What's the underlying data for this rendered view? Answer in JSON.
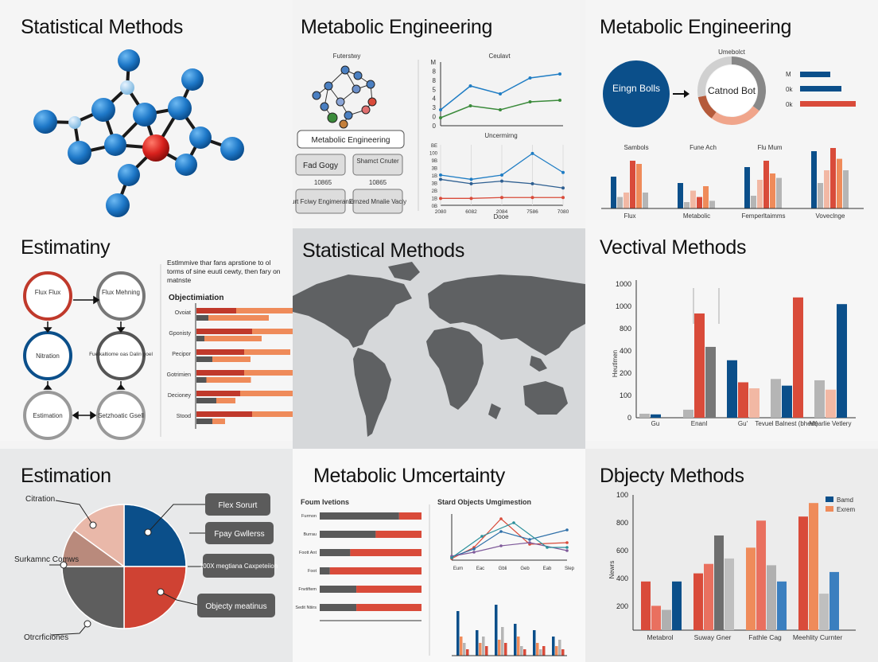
{
  "colors": {
    "navy": "#0b4f8a",
    "red": "#d94b3a",
    "orange": "#ef8b5a",
    "salmon": "#f2b8a4",
    "gray": "#5a5a5a",
    "lightgray": "#b5b5b5",
    "green": "#3a8a3a",
    "blue": "#1f7dc4"
  },
  "panels": {
    "p1": {
      "title": "Statistical Methods"
    },
    "p2": {
      "title": "Metabolic Engineering",
      "network_label": "Futerstwy",
      "box_main": "Metabolic Engineering",
      "boxes": [
        "Fad Gogy",
        "Shamct Cnuter",
        "Murt Fciwy Engimeranxs",
        "Ernzed Mnalie Vaciy"
      ],
      "box_vals": [
        "10865",
        "10865"
      ],
      "chart1_title": "Ceulavt",
      "chart1_yticks": [
        "M",
        "8",
        "8",
        "5",
        "4",
        "3",
        "0",
        "0"
      ],
      "chart2_title": "Uncermirng",
      "chart2_yticks": [
        "BE",
        "100",
        "9B",
        "3B",
        "1B",
        "3B",
        "2B",
        "1B",
        "0B"
      ],
      "chart2_xticks": [
        "2080",
        "6082",
        "2084",
        "7586",
        "7080"
      ],
      "chart2_xlabel": "Dooe"
    },
    "p3": {
      "title": "Metabolic Engineering",
      "circle1": "Eingn Bolls",
      "circle2_top": "Umebolct",
      "circle2": "Catnod Bot",
      "legend": [
        "M",
        "0k",
        "0k"
      ],
      "groups_top": [
        "Sambols",
        "Fune Ach",
        "Flu Mum"
      ],
      "groups_bottom": [
        "Flux",
        "Metabolic",
        "Femperltaimms",
        "Voveclnge"
      ]
    },
    "p4": {
      "title": "Estimatiny",
      "nodes": [
        "Flux Flux",
        "Flux Mehning",
        "Nitration",
        "Fuelkaltiome oas Dalin goel",
        "Estimation",
        "Setzhoatic Gsell"
      ],
      "desc": "Estlmmive thar fans aprstione to ol torms of sine euuti cewty, then fary on matnste",
      "sub_title": "Objectimiation",
      "row_labels": [
        "Ovoiat",
        "Gponisty",
        "Pecipor",
        "Gotrimien",
        "Decioney",
        "Stood"
      ]
    },
    "p5": {
      "title": "Statistical Methods"
    },
    "p6": {
      "title": "Vectival Methods",
      "ylabel": "Heutlmen",
      "yticks": [
        "1000",
        "1000",
        "800",
        "400",
        "200",
        "100",
        "0"
      ],
      "xticks": [
        "Gu",
        "Enanl",
        "Gu'",
        "Tevuel Balnest (bhest)",
        "Mearlie Vetlery"
      ]
    },
    "p7": {
      "title": "Estimation",
      "labels": [
        "Citration",
        "Surkamnc Comws",
        "Otrcrficiones"
      ],
      "boxes": [
        "Flex Sorurt",
        "Fpay Gwllerss",
        "100X megtiana Caxpeteiion",
        "Objecty meatinus"
      ]
    },
    "p8": {
      "title": "Metabolic Umcertainty",
      "bar_title": "Foum Ivetions",
      "bar_labels": [
        "Furmon",
        "Burrau",
        "Foott Ant",
        "Foot",
        "Fnvtiftem",
        "Sedit Ntiirs"
      ],
      "line_title": "Stard Objects Umgimestion",
      "line_xticks": [
        "Eum",
        "Eac",
        "Gbli",
        "Geb",
        "Eab",
        "Slep"
      ]
    },
    "p9": {
      "title": "Dbjecty Methods",
      "legend": [
        "Bamd",
        "Exrem"
      ],
      "ylabel": "Newrs",
      "yticks": [
        "100",
        "800",
        "600",
        "400",
        "200"
      ],
      "xticks": [
        "Metabrol",
        "Suway Gner",
        "Fathle Cag",
        "Meehlity Curnter"
      ]
    }
  },
  "chart_data": [
    {
      "type": "line",
      "title": "Ceulavt",
      "series": [
        {
          "values": [
            2,
            5,
            4,
            6,
            6.5
          ]
        },
        {
          "values": [
            1,
            2.5,
            2,
            3,
            3.2
          ]
        }
      ]
    },
    {
      "type": "line",
      "title": "Uncermirng",
      "x": [
        "2080",
        "6082",
        "2084",
        "7586",
        "7080"
      ],
      "series": [
        {
          "values": [
            35,
            30,
            35,
            60,
            38
          ]
        },
        {
          "values": [
            30,
            25,
            28,
            25,
            20
          ]
        },
        {
          "values": [
            8,
            8,
            9,
            9,
            9
          ]
        }
      ]
    },
    {
      "type": "bar",
      "categories": [
        "Flux",
        "Metabolic",
        "Femperltaimms",
        "Voveclnge"
      ],
      "series": [
        {
          "values": [
            50,
            40,
            65,
            90
          ]
        },
        {
          "values": [
            18,
            10,
            20,
            40
          ]
        },
        {
          "values": [
            25,
            28,
            45,
            60
          ]
        },
        {
          "values": [
            75,
            18,
            75,
            95
          ]
        },
        {
          "values": [
            70,
            35,
            55,
            78
          ]
        },
        {
          "values": [
            25,
            12,
            48,
            60
          ]
        }
      ]
    },
    {
      "type": "bar",
      "title": "Vectival Methods",
      "ylabel": "Heutlmen",
      "categories": [
        "Gu",
        "Enanl",
        "Gu'",
        "Tevuel Balnest (bhest)",
        "Mearlie Vetlery"
      ],
      "series": [
        {
          "name": "",
          "values": [
            30,
            60,
            430,
            290,
            280
          ]
        },
        {
          "name": "",
          "values": [
            25,
            780,
            265,
            240,
            210
          ]
        },
        {
          "name": "",
          "values": [
            0,
            530,
            220,
            900,
            850
          ]
        }
      ]
    },
    {
      "type": "pie",
      "slices": [
        {
          "label": "Citration",
          "value": 25
        },
        {
          "label": "Flex Sorurt",
          "value": 25
        },
        {
          "label": "Objecty meatinus",
          "value": 25
        },
        {
          "label": "Otrcrficiones",
          "value": 10
        },
        {
          "label": "Surkamnc Comws",
          "value": 15
        }
      ]
    },
    {
      "type": "bar",
      "title": "Dbjecty Methods",
      "ylabel": "Newrs",
      "categories": [
        "Metabrol",
        "Suway Gner",
        "Fathle Cag",
        "Meehlity Curnter"
      ],
      "series": [
        {
          "name": "Bamd",
          "values": [
            360,
            420,
            610,
            840
          ]
        },
        {
          "name": "Exrem",
          "values": [
            180,
            490,
            810,
            940
          ]
        },
        {
          "values": [
            150,
            700,
            480,
            270
          ]
        },
        {
          "values": [
            360,
            530,
            360,
            430
          ]
        }
      ]
    }
  ]
}
